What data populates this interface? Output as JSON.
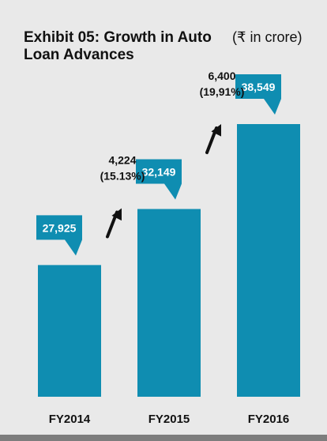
{
  "title": "Exhibit 05: Growth in Auto Loan Advances",
  "unit_note": "(₹ in crore)",
  "colors": {
    "bar": "#0f8db1",
    "background": "#e9e9e9",
    "text": "#111111",
    "arrow": "#111111",
    "rule": "#7d7d7d"
  },
  "chart_data": {
    "type": "bar",
    "title": "Exhibit 05: Growth in Auto Loan Advances",
    "unit": "(₹ in crore)",
    "categories": [
      "FY2014",
      "FY2015",
      "FY2016"
    ],
    "values": [
      27925,
      32149,
      38549
    ],
    "value_labels": [
      "27,925",
      "32,149",
      "38,549"
    ],
    "growth_annotations": [
      {
        "between": [
          "FY2014",
          "FY2015"
        ],
        "amount": "4,224",
        "percent": "(15.13%)"
      },
      {
        "between": [
          "FY2015",
          "FY2016"
        ],
        "amount": "6,400",
        "percent": "(19,91%)"
      }
    ],
    "ylim": [
      18000,
      40500
    ],
    "grid": false,
    "legend": "none"
  }
}
